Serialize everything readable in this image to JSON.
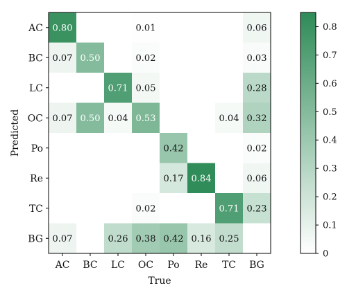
{
  "chart_data": {
    "type": "heatmap",
    "xlabel": "True",
    "ylabel": "Predicted",
    "x_categories": [
      "AC",
      "BC",
      "LC",
      "OC",
      "Po",
      "Re",
      "TC",
      "BG"
    ],
    "y_categories": [
      "AC",
      "BC",
      "LC",
      "OC",
      "Po",
      "Re",
      "TC",
      "BG"
    ],
    "values": [
      [
        0.8,
        null,
        null,
        0.01,
        null,
        null,
        null,
        0.06
      ],
      [
        0.07,
        0.5,
        null,
        0.02,
        null,
        null,
        null,
        0.03
      ],
      [
        null,
        null,
        0.71,
        0.05,
        null,
        null,
        null,
        0.28
      ],
      [
        0.07,
        0.5,
        0.04,
        0.53,
        null,
        null,
        0.04,
        0.32
      ],
      [
        null,
        null,
        null,
        null,
        0.42,
        null,
        null,
        0.02
      ],
      [
        null,
        null,
        null,
        null,
        0.17,
        0.84,
        null,
        0.06
      ],
      [
        null,
        null,
        null,
        0.02,
        null,
        null,
        0.71,
        0.23
      ],
      [
        0.07,
        null,
        0.26,
        0.38,
        0.42,
        0.16,
        0.25,
        null
      ]
    ],
    "value_labels": [
      [
        "0.80",
        "",
        "",
        "0.01",
        "",
        "",
        "",
        "0.06"
      ],
      [
        "0.07",
        "0.50",
        "",
        "0.02",
        "",
        "",
        "",
        "0.03"
      ],
      [
        "",
        "",
        "0.71",
        "0.05",
        "",
        "",
        "",
        "0.28"
      ],
      [
        "0.07",
        "0.50",
        "0.04",
        "0.53",
        "",
        "",
        "0.04",
        "0.32"
      ],
      [
        "",
        "",
        "",
        "",
        "0.42",
        "",
        "",
        "0.02"
      ],
      [
        "",
        "",
        "",
        "",
        "0.17",
        "0.84",
        "",
        "0.06"
      ],
      [
        "",
        "",
        "",
        "0.02",
        "",
        "",
        "0.71",
        "0.23"
      ],
      [
        "0.07",
        "",
        "0.26",
        "0.38",
        "0.42",
        "0.16",
        "0.25",
        ""
      ]
    ],
    "colorbar": {
      "range": [
        0,
        0.85
      ],
      "ticks": [
        0,
        0.1,
        0.2,
        0.3,
        0.4,
        0.5,
        0.6,
        0.7,
        0.8
      ],
      "tick_labels": [
        "0",
        "0.1",
        "0.2",
        "0.3",
        "0.4",
        "0.5",
        "0.6",
        "0.7",
        "0.8"
      ],
      "color_low": "#ffffff",
      "color_high": "#2e8b57"
    },
    "grid": false
  }
}
